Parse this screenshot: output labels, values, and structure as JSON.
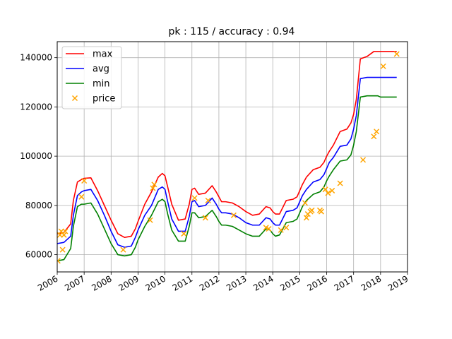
{
  "chart_data": {
    "type": "line",
    "title": "pk : 115 / accuracy : 0.94",
    "xlabel": "",
    "ylabel": "",
    "xlim": [
      2006.0,
      2019.0
    ],
    "ylim": [
      53000,
      146500
    ],
    "grid": true,
    "legend_position": "top-left",
    "x_ticks": [
      2006,
      2007,
      2008,
      2009,
      2010,
      2011,
      2012,
      2013,
      2014,
      2015,
      2016,
      2017,
      2018,
      2019
    ],
    "x_tick_labels": [
      "2006",
      "2007",
      "2008",
      "2009",
      "2010",
      "2011",
      "2012",
      "2013",
      "2014",
      "2015",
      "2016",
      "2017",
      "2018",
      "2019"
    ],
    "y_ticks": [
      60000,
      80000,
      100000,
      120000,
      140000
    ],
    "y_tick_labels": [
      "60000",
      "80000",
      "100000",
      "120000",
      "140000"
    ],
    "x": [
      2006.0,
      2006.25,
      2006.5,
      2006.6,
      2006.75,
      2006.9,
      2007.0,
      2007.25,
      2007.5,
      2007.75,
      2008.0,
      2008.25,
      2008.5,
      2008.75,
      2008.9,
      2009.0,
      2009.25,
      2009.5,
      2009.75,
      2009.9,
      2010.0,
      2010.1,
      2010.25,
      2010.5,
      2010.75,
      2010.9,
      2011.0,
      2011.1,
      2011.25,
      2011.5,
      2011.75,
      2011.9,
      2012.0,
      2012.1,
      2012.25,
      2012.5,
      2012.75,
      2013.0,
      2013.25,
      2013.5,
      2013.75,
      2013.9,
      2014.0,
      2014.1,
      2014.25,
      2014.5,
      2014.75,
      2014.9,
      2015.0,
      2015.1,
      2015.25,
      2015.5,
      2015.75,
      2015.9,
      2016.0,
      2016.1,
      2016.25,
      2016.5,
      2016.75,
      2016.9,
      2017.0,
      2017.1,
      2017.25,
      2017.5,
      2017.75,
      2017.9,
      2018.0,
      2018.1,
      2018.25,
      2018.5,
      2018.6
    ],
    "series": [
      {
        "name": "max",
        "color": "#ff0000",
        "values": [
          68500,
          69000,
          72500,
          82000,
          89500,
          90500,
          91000,
          91200,
          86000,
          80000,
          74000,
          68500,
          67000,
          67500,
          70500,
          73500,
          80500,
          85500,
          91500,
          93000,
          92000,
          87500,
          80500,
          74000,
          74500,
          80500,
          86500,
          87000,
          84500,
          85000,
          88000,
          85500,
          83500,
          81500,
          81500,
          81000,
          79500,
          77500,
          76000,
          76500,
          79500,
          79000,
          77500,
          76500,
          76500,
          82000,
          82500,
          83500,
          86000,
          88500,
          91500,
          94500,
          95500,
          97500,
          100000,
          102000,
          104500,
          110000,
          111000,
          113500,
          117000,
          123000,
          139500,
          140500,
          142500,
          142500,
          142500,
          142500,
          142500,
          142500,
          142500
        ]
      },
      {
        "name": "avg",
        "color": "#0000ff",
        "values": [
          64500,
          65000,
          67500,
          76000,
          84000,
          85500,
          86000,
          86500,
          82000,
          76000,
          69500,
          64000,
          63000,
          63500,
          67000,
          70000,
          76000,
          80000,
          86500,
          87500,
          86500,
          81500,
          74500,
          69500,
          69500,
          75500,
          81500,
          82000,
          79500,
          80000,
          83000,
          80500,
          78500,
          77000,
          77000,
          76500,
          75000,
          73000,
          72000,
          72000,
          75000,
          74500,
          73000,
          72000,
          72000,
          77500,
          78000,
          79000,
          81500,
          84000,
          86500,
          89500,
          90500,
          92500,
          95000,
          97500,
          99500,
          104000,
          104500,
          107000,
          111000,
          116500,
          131500,
          132000,
          132000,
          132000,
          132000,
          132000,
          132000,
          132000,
          132000
        ]
      },
      {
        "name": "min",
        "color": "#008000",
        "values": [
          57500,
          58000,
          62500,
          71500,
          79500,
          80500,
          80500,
          81000,
          76500,
          70500,
          64500,
          60000,
          59500,
          60000,
          63000,
          66000,
          71500,
          76000,
          81500,
          82500,
          81500,
          76500,
          70000,
          65500,
          65500,
          71500,
          77000,
          77000,
          75000,
          75500,
          78000,
          75500,
          73500,
          72000,
          72000,
          71500,
          70000,
          68500,
          67500,
          67500,
          70500,
          70000,
          68500,
          67500,
          68000,
          73000,
          73500,
          74500,
          77000,
          79500,
          82000,
          84500,
          85500,
          87500,
          90000,
          92000,
          94500,
          98000,
          98500,
          100500,
          104500,
          110000,
          124000,
          124500,
          124500,
          124500,
          124000,
          124000,
          124000,
          124000,
          124000
        ]
      },
      {
        "name": "price",
        "color": "#ffa500",
        "marker": "x",
        "x": [
          2006.02,
          2006.1,
          2006.15,
          2006.2,
          2006.25,
          2006.3,
          2006.9,
          2007.0,
          2008.45,
          2009.45,
          2009.55,
          2009.6,
          2010.7,
          2011.1,
          2011.5,
          2011.6,
          2012.55,
          2013.75,
          2013.85,
          2014.3,
          2014.5,
          2015.2,
          2015.25,
          2015.3,
          2015.4,
          2015.45,
          2015.75,
          2015.8,
          2015.95,
          2016.05,
          2016.2,
          2016.5,
          2017.35,
          2017.75,
          2017.85,
          2018.1,
          2018.6
        ],
        "values": [
          57500,
          68000,
          69500,
          62000,
          68000,
          69500,
          83500,
          90000,
          62000,
          74000,
          87000,
          88500,
          68500,
          83000,
          75000,
          82000,
          76000,
          71000,
          70500,
          70000,
          71000,
          81000,
          75000,
          76500,
          77500,
          78000,
          78000,
          77500,
          86500,
          85000,
          86000,
          89000,
          98500,
          108000,
          110000,
          136500,
          141500
        ]
      }
    ],
    "legend": [
      "max",
      "avg",
      "min",
      "price"
    ]
  }
}
